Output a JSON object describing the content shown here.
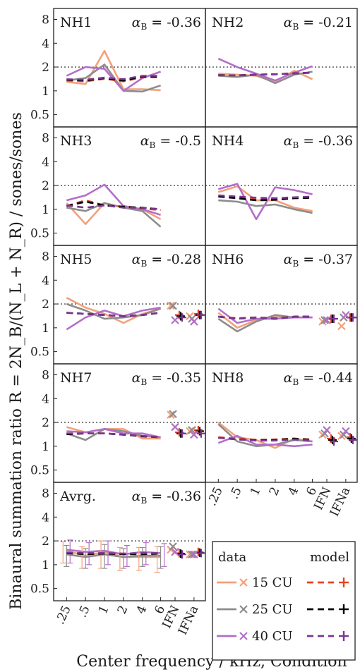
{
  "figure": {
    "ylabel": "Binaural summation ratio R = 2N_B/(N_L + N_R) / sones/sones",
    "xlabel": "Center frequency / kHz, Condition"
  },
  "legend": {
    "data_header": "data",
    "model_header": "model",
    "entries": [
      {
        "label": "15 CU",
        "color": "#f4a07a",
        "model_color": "#e8431f"
      },
      {
        "label": "25 CU",
        "color": "#8c8c8c",
        "model_color": "#000000"
      },
      {
        "label": "40 CU",
        "color": "#b46ec9",
        "model_color": "#7a3592"
      }
    ]
  },
  "chart_data": {
    "type": "line",
    "y_scale": "log",
    "ylim": [
      0.35,
      11
    ],
    "yticks": [
      "0.5",
      "1",
      "2",
      "4",
      "8"
    ],
    "reference_line": 2,
    "categories": [
      ".25",
      ".5",
      "1",
      "2",
      "4",
      "6",
      "IFN",
      "IFNa"
    ],
    "panels": [
      {
        "name": "NH1",
        "alpha": "-0.36",
        "has_ifn": false,
        "data": {
          "15": [
            1.3,
            1.22,
            3.2,
            1.05,
            1.05,
            1.02
          ],
          "25": [
            1.35,
            1.45,
            2.15,
            1.0,
            0.98,
            1.17
          ],
          "40": [
            1.55,
            2.0,
            1.9,
            1.0,
            1.45,
            1.75
          ]
        },
        "model": {
          "15": [
            1.35,
            1.32,
            1.42,
            1.32,
            1.48,
            1.48
          ],
          "25": [
            1.38,
            1.35,
            1.45,
            1.35,
            1.52,
            1.52
          ],
          "40": [
            1.4,
            1.38,
            1.47,
            1.4,
            1.55,
            1.55
          ]
        }
      },
      {
        "name": "NH2",
        "alpha": "-0.21",
        "has_ifn": false,
        "data": {
          "15": [
            1.65,
            1.6,
            1.55,
            1.3,
            1.8,
            1.4
          ],
          "25": [
            1.55,
            1.5,
            1.6,
            1.25,
            1.6,
            1.75
          ],
          "40": [
            2.55,
            2.0,
            1.65,
            1.35,
            1.7,
            2.05
          ]
        },
        "model": {
          "15": [
            1.58,
            1.57,
            1.6,
            1.62,
            1.66,
            1.7
          ],
          "25": [
            1.58,
            1.57,
            1.6,
            1.62,
            1.66,
            1.7
          ],
          "40": [
            1.58,
            1.57,
            1.6,
            1.62,
            1.66,
            1.7
          ]
        }
      },
      {
        "name": "NH3",
        "alpha": "-0.5",
        "has_ifn": false,
        "data": {
          "15": [
            1.2,
            0.65,
            1.2,
            1.05,
            1.0,
            0.75
          ],
          "25": [
            1.05,
            0.95,
            1.2,
            1.05,
            0.95,
            0.6
          ],
          "40": [
            1.3,
            1.5,
            2.05,
            1.1,
            1.0,
            0.85
          ]
        },
        "model": {
          "15": [
            1.1,
            1.3,
            1.12,
            1.08,
            1.02,
            0.98
          ],
          "25": [
            1.1,
            1.25,
            1.12,
            1.08,
            1.05,
            1.0
          ],
          "40": [
            1.12,
            1.05,
            1.12,
            1.05,
            1.05,
            1.0
          ]
        }
      },
      {
        "name": "NH4",
        "alpha": "-0.36",
        "has_ifn": false,
        "data": {
          "15": [
            1.65,
            1.95,
            1.3,
            1.3,
            1.05,
            0.95
          ],
          "25": [
            1.3,
            1.25,
            1.1,
            1.15,
            1.0,
            0.9
          ],
          "40": [
            1.8,
            2.1,
            0.75,
            1.9,
            1.75,
            1.55
          ]
        },
        "model": {
          "15": [
            1.45,
            1.4,
            1.32,
            1.35,
            1.4,
            1.42
          ],
          "25": [
            1.45,
            1.38,
            1.3,
            1.32,
            1.38,
            1.4
          ],
          "40": [
            1.5,
            1.45,
            1.4,
            1.38,
            1.42,
            1.45
          ]
        }
      },
      {
        "name": "NH5",
        "alpha": "-0.28",
        "has_ifn": true,
        "data": {
          "15": [
            2.4,
            1.8,
            1.5,
            1.15,
            1.5,
            1.75
          ],
          "25": [
            2.0,
            1.65,
            1.3,
            1.35,
            1.45,
            1.75
          ],
          "40": [
            0.95,
            1.35,
            1.65,
            1.4,
            1.65,
            1.8
          ]
        },
        "model": {
          "15": [
            1.55,
            1.5,
            1.45,
            1.4,
            1.45,
            1.55
          ],
          "25": [
            1.55,
            1.5,
            1.45,
            1.4,
            1.45,
            1.55
          ],
          "40": [
            1.55,
            1.5,
            1.45,
            1.4,
            1.45,
            1.55
          ]
        },
        "ifn_data": {
          "15": [
            1.9,
            1.4
          ],
          "25": [
            1.9,
            1.3
          ],
          "40": [
            1.25,
            1.2
          ]
        },
        "ifn_model": {
          "15": [
            1.45,
            1.5
          ],
          "25": [
            1.4,
            1.45
          ],
          "40": [
            1.35,
            1.45
          ]
        }
      },
      {
        "name": "NH6",
        "alpha": "-0.37",
        "has_ifn": true,
        "data": {
          "15": [
            1.55,
            1.0,
            1.25,
            1.4,
            1.35,
            1.35
          ],
          "25": [
            1.3,
            0.9,
            1.2,
            1.45,
            1.35,
            1.35
          ],
          "40": [
            1.75,
            1.15,
            1.3,
            1.3,
            1.35,
            1.35
          ]
        },
        "model": {
          "15": [
            1.38,
            1.32,
            1.35,
            1.32,
            1.38,
            1.38
          ],
          "25": [
            1.38,
            1.3,
            1.35,
            1.3,
            1.38,
            1.38
          ],
          "40": [
            1.38,
            1.3,
            1.35,
            1.3,
            1.38,
            1.38
          ]
        },
        "ifn_data": {
          "15": [
            1.2,
            1.05
          ],
          "25": [
            1.25,
            1.35
          ],
          "40": [
            1.25,
            1.45
          ]
        },
        "ifn_model": {
          "15": [
            1.3,
            1.35
          ],
          "25": [
            1.3,
            1.35
          ],
          "40": [
            1.3,
            1.35
          ]
        }
      },
      {
        "name": "NH7",
        "alpha": "-0.35",
        "has_ifn": true,
        "data": {
          "15": [
            1.75,
            1.5,
            1.65,
            1.65,
            1.25,
            1.25
          ],
          "25": [
            1.45,
            1.2,
            1.65,
            1.55,
            1.35,
            1.3
          ],
          "40": [
            1.55,
            1.5,
            1.65,
            1.45,
            1.45,
            1.3
          ]
        },
        "model": {
          "15": [
            1.45,
            1.45,
            1.45,
            1.4,
            1.35,
            1.3
          ],
          "25": [
            1.42,
            1.45,
            1.45,
            1.4,
            1.33,
            1.3
          ],
          "40": [
            1.45,
            1.45,
            1.45,
            1.4,
            1.35,
            1.3
          ]
        },
        "ifn_data": {
          "15": [
            2.5,
            1.55
          ],
          "25": [
            2.55,
            1.6
          ],
          "40": [
            1.75,
            1.4
          ]
        },
        "ifn_model": {
          "15": [
            1.5,
            1.6
          ],
          "25": [
            1.45,
            1.55
          ],
          "40": [
            1.45,
            1.45
          ]
        }
      },
      {
        "name": "NH8",
        "alpha": "-0.44",
        "has_ifn": true,
        "data": {
          "15": [
            2.0,
            1.3,
            1.2,
            0.95,
            1.25,
            1.15
          ],
          "25": [
            1.9,
            1.15,
            1.0,
            1.05,
            1.2,
            1.15
          ],
          "40": [
            1.1,
            1.35,
            1.05,
            1.05,
            1.0,
            1.05
          ]
        },
        "model": {
          "15": [
            1.3,
            1.25,
            1.2,
            1.22,
            1.25,
            1.22
          ],
          "25": [
            1.28,
            1.22,
            1.2,
            1.2,
            1.25,
            1.2
          ],
          "40": [
            1.28,
            1.22,
            1.18,
            1.18,
            1.22,
            1.18
          ]
        },
        "ifn_data": {
          "15": [
            1.4,
            1.35
          ],
          "25": [
            1.45,
            1.4
          ],
          "40": [
            1.6,
            1.55
          ]
        },
        "ifn_model": {
          "15": [
            1.25,
            1.3
          ],
          "25": [
            1.2,
            1.25
          ],
          "40": [
            1.15,
            1.2
          ]
        }
      },
      {
        "name": "Avrg.",
        "alpha": "-0.36",
        "has_ifn": true,
        "error_bars": true,
        "data": {
          "15": [
            1.5,
            1.3,
            1.45,
            1.25,
            1.25,
            1.25
          ],
          "25": [
            1.35,
            1.25,
            1.35,
            1.25,
            1.3,
            1.3
          ],
          "40": [
            1.55,
            1.45,
            1.5,
            1.35,
            1.45,
            1.4
          ]
        },
        "model": {
          "15": [
            1.42,
            1.38,
            1.4,
            1.38,
            1.38,
            1.4
          ],
          "25": [
            1.4,
            1.36,
            1.38,
            1.36,
            1.36,
            1.38
          ],
          "40": [
            1.42,
            1.4,
            1.4,
            1.38,
            1.4,
            1.4
          ]
        },
        "ifn_data": {
          "15": [
            1.55,
            1.35
          ],
          "25": [
            1.7,
            1.35
          ],
          "40": [
            1.45,
            1.35
          ]
        },
        "ifn_model": {
          "15": [
            1.4,
            1.45
          ],
          "25": [
            1.38,
            1.42
          ],
          "40": [
            1.35,
            1.4
          ]
        },
        "errors": {
          "15": [
            0.45,
            0.4,
            0.55,
            0.4,
            0.4,
            0.45
          ],
          "25": [
            0.4,
            0.35,
            0.45,
            0.35,
            0.35,
            0.4
          ],
          "40": [
            0.5,
            0.45,
            0.5,
            0.4,
            0.45,
            0.45
          ]
        }
      }
    ]
  }
}
